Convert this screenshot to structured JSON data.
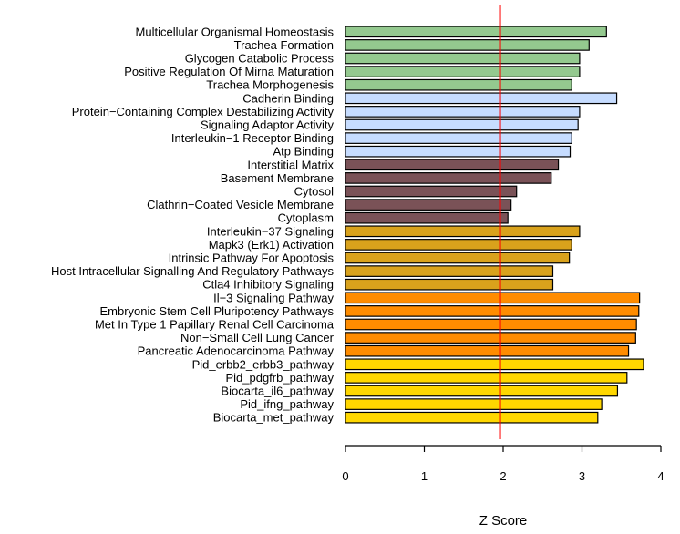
{
  "chart_data": {
    "type": "bar",
    "orientation": "horizontal",
    "xlabel": "Z Score",
    "xlim": [
      0,
      4
    ],
    "xticks": [
      "0",
      "1",
      "2",
      "3",
      "4"
    ],
    "reference_line": {
      "x": 1.96,
      "color": "#ff0000"
    },
    "grid": false,
    "colors": {
      "green": "#94c98f",
      "lightblue": "#c6dcff",
      "brown": "#7a5257",
      "gold": "#d9a21c",
      "orange": "#ff8c00",
      "yellow": "#ffd700"
    },
    "categories": [
      "Multicellular Organismal Homeostasis",
      "Trachea Formation",
      "Glycogen Catabolic Process",
      "Positive Regulation Of Mirna Maturation",
      "Trachea Morphogenesis",
      "Cadherin Binding",
      "Protein−Containing Complex Destabilizing Activity",
      "Signaling Adaptor Activity",
      "Interleukin−1 Receptor Binding",
      "Atp Binding",
      "Interstitial Matrix",
      "Basement Membrane",
      "Cytosol",
      "Clathrin−Coated Vesicle Membrane",
      "Cytoplasm",
      "Interleukin−37 Signaling",
      "Mapk3 (Erk1) Activation",
      "Intrinsic Pathway For Apoptosis",
      "Host Intracellular Signalling And Regulatory Pathways",
      "Ctla4 Inhibitory Signaling",
      "Il−3 Signaling Pathway",
      "Embryonic Stem Cell Pluripotency Pathways",
      "Met In Type 1 Papillary Renal Cell Carcinoma",
      "Non−Small Cell Lung Cancer",
      "Pancreatic Adenocarcinoma Pathway",
      "Pid_erbb2_erbb3_pathway",
      "Pid_pdgfrb_pathway",
      "Biocarta_il6_pathway",
      "Pid_ifng_pathway",
      "Biocarta_met_pathway"
    ],
    "values": [
      3.31,
      3.09,
      2.97,
      2.97,
      2.87,
      3.44,
      2.97,
      2.95,
      2.87,
      2.85,
      2.7,
      2.61,
      2.17,
      2.1,
      2.06,
      2.97,
      2.87,
      2.84,
      2.63,
      2.63,
      3.73,
      3.72,
      3.69,
      3.68,
      3.59,
      3.78,
      3.57,
      3.45,
      3.25,
      3.2
    ],
    "bar_colors": [
      "green",
      "green",
      "green",
      "green",
      "green",
      "lightblue",
      "lightblue",
      "lightblue",
      "lightblue",
      "lightblue",
      "brown",
      "brown",
      "brown",
      "brown",
      "brown",
      "gold",
      "gold",
      "gold",
      "gold",
      "gold",
      "orange",
      "orange",
      "orange",
      "orange",
      "orange",
      "yellow",
      "yellow",
      "yellow",
      "yellow",
      "yellow"
    ]
  }
}
